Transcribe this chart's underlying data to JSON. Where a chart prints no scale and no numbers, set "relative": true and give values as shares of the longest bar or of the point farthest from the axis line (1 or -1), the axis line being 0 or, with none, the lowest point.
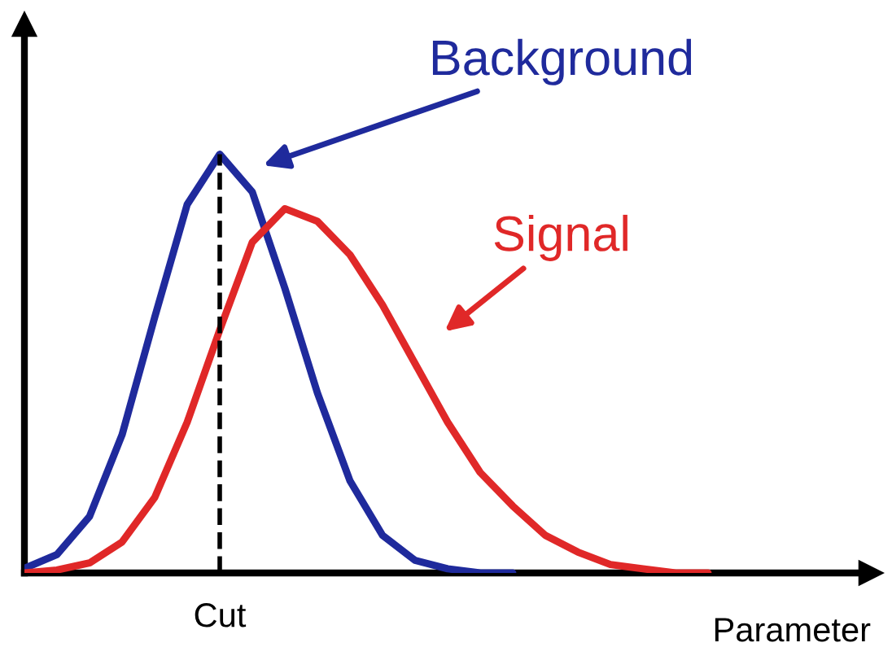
{
  "chart_data": {
    "type": "line",
    "relative": true,
    "xlabel": "Parameter",
    "categories": [
      null,
      null,
      null,
      null,
      null,
      null,
      null,
      null,
      null,
      null,
      null,
      null,
      null,
      null,
      null,
      null,
      null,
      null,
      null,
      null,
      null,
      null,
      null,
      null,
      null,
      null,
      null
    ],
    "series": [
      {
        "name": "Background",
        "color": "#1f2a9c",
        "values": [
          0.011,
          0.044,
          0.135,
          0.33,
          0.61,
          0.88,
          1,
          0.91,
          0.68,
          0.43,
          0.22,
          0.09,
          0.03,
          0.01,
          0,
          0,
          null,
          null,
          null,
          null,
          null,
          null,
          null,
          null,
          null,
          null,
          null
        ]
      },
      {
        "name": "Signal",
        "color": "#e02828",
        "values": [
          0,
          0.007,
          0.024,
          0.074,
          0.18,
          0.36,
          0.58,
          0.79,
          0.87,
          0.84,
          0.76,
          0.64,
          0.5,
          0.36,
          0.24,
          0.16,
          0.09,
          0.05,
          0.02,
          0.01,
          0,
          0,
          null,
          null,
          null,
          null,
          null
        ]
      }
    ],
    "annotations": [
      "Cut"
    ]
  }
}
